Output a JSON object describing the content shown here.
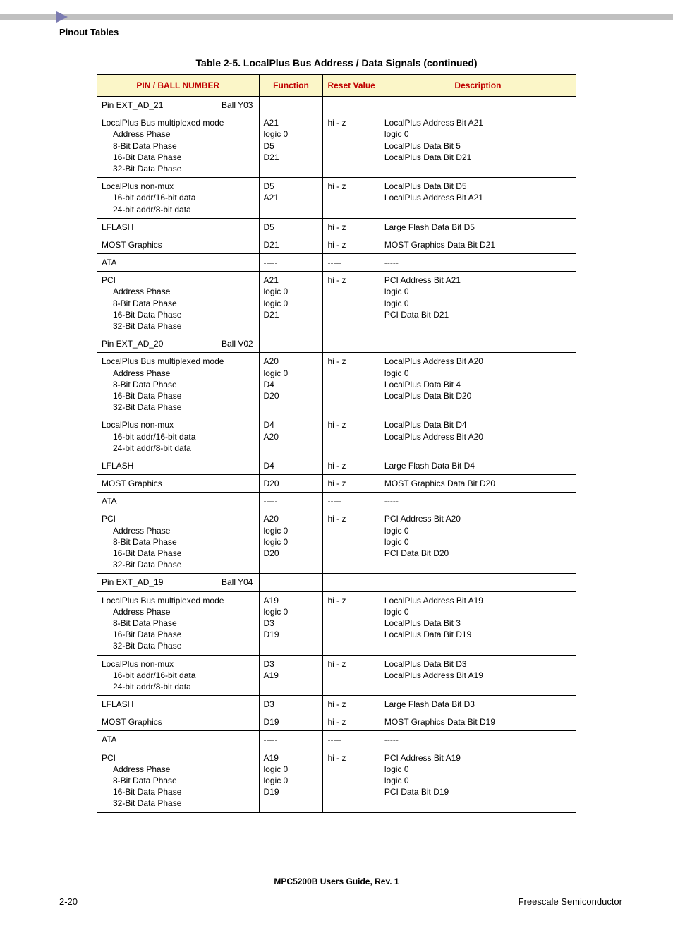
{
  "header": {
    "section_title": "Pinout Tables",
    "table_caption": "Table 2-5. LocalPlus Bus Address / Data Signals (continued)"
  },
  "columns": {
    "c0": "PIN / BALL NUMBER",
    "c1": "Function",
    "c2": "Reset Value",
    "c3": "Description"
  },
  "groups": [
    {
      "pin_label": "Pin  EXT_AD_21",
      "ball_label": "Ball Y03",
      "rows": [
        {
          "name_lines": [
            "LocalPlus Bus multiplexed mode",
            "  Address Phase",
            "  8-Bit Data Phase",
            "  16-Bit Data Phase",
            "  32-Bit Data Phase"
          ],
          "func_lines": [
            "",
            "A21",
            "logic 0",
            "D5",
            "D21"
          ],
          "reset": "hi - z",
          "desc_lines": [
            "",
            "LocalPlus Address Bit A21",
            "logic 0",
            "LocalPlus Data Bit 5",
            "LocalPlus Data Bit D21"
          ]
        },
        {
          "name_lines": [
            "LocalPlus non-mux",
            "  16-bit addr/16-bit data",
            "  24-bit addr/8-bit data"
          ],
          "func_lines": [
            "",
            "D5",
            "A21"
          ],
          "reset": "hi - z",
          "desc_lines": [
            "",
            "LocalPlus Data Bit D5",
            "LocalPlus Address Bit A21"
          ]
        },
        {
          "name_lines": [
            "LFLASH"
          ],
          "func_lines": [
            "D5"
          ],
          "reset": "hi - z",
          "desc_lines": [
            "Large Flash Data Bit D5"
          ]
        },
        {
          "name_lines": [
            "MOST Graphics"
          ],
          "func_lines": [
            "D21"
          ],
          "reset": "hi - z",
          "desc_lines": [
            "MOST Graphics Data Bit D21"
          ]
        },
        {
          "name_lines": [
            "ATA"
          ],
          "func_lines": [
            "-----"
          ],
          "reset": "-----",
          "desc_lines": [
            "-----"
          ]
        },
        {
          "name_lines": [
            "PCI",
            "  Address Phase",
            "  8-Bit Data Phase",
            "  16-Bit Data Phase",
            "  32-Bit Data Phase"
          ],
          "func_lines": [
            "",
            "A21",
            "logic 0",
            "logic 0",
            "D21"
          ],
          "reset": "hi - z",
          "desc_lines": [
            "",
            "PCI Address Bit A21",
            "logic 0",
            "logic 0",
            "PCI Data Bit D21"
          ]
        }
      ]
    },
    {
      "pin_label": "Pin  EXT_AD_20",
      "ball_label": "Ball V02",
      "rows": [
        {
          "name_lines": [
            "LocalPlus Bus multiplexed mode",
            "  Address Phase",
            "  8-Bit Data Phase",
            "  16-Bit Data Phase",
            "  32-Bit Data Phase"
          ],
          "func_lines": [
            "",
            "A20",
            "logic 0",
            "D4",
            "D20"
          ],
          "reset": "hi - z",
          "desc_lines": [
            "",
            "LocalPlus Address Bit A20",
            "logic 0",
            "LocalPlus Data Bit 4",
            "LocalPlus Data Bit D20"
          ]
        },
        {
          "name_lines": [
            "LocalPlus non-mux",
            "  16-bit addr/16-bit data",
            "  24-bit addr/8-bit data"
          ],
          "func_lines": [
            "",
            "D4",
            "A20"
          ],
          "reset": "hi - z",
          "desc_lines": [
            "",
            "LocalPlus Data Bit D4",
            "LocalPlus Address Bit A20"
          ]
        },
        {
          "name_lines": [
            "LFLASH"
          ],
          "func_lines": [
            "D4"
          ],
          "reset": "hi - z",
          "desc_lines": [
            "Large Flash Data Bit D4"
          ]
        },
        {
          "name_lines": [
            "MOST Graphics"
          ],
          "func_lines": [
            "D20"
          ],
          "reset": "hi - z",
          "desc_lines": [
            "MOST Graphics Data Bit D20"
          ]
        },
        {
          "name_lines": [
            "ATA"
          ],
          "func_lines": [
            "-----"
          ],
          "reset": "-----",
          "desc_lines": [
            "-----"
          ]
        },
        {
          "name_lines": [
            "PCI",
            "  Address Phase",
            "  8-Bit Data Phase",
            "  16-Bit Data Phase",
            "  32-Bit Data Phase"
          ],
          "func_lines": [
            "",
            "A20",
            "logic 0",
            "logic 0",
            "D20"
          ],
          "reset": "hi - z",
          "desc_lines": [
            "",
            "PCI Address Bit A20",
            "logic 0",
            "logic 0",
            "PCI Data Bit D20"
          ]
        }
      ]
    },
    {
      "pin_label": "Pin  EXT_AD_19",
      "ball_label": "Ball Y04",
      "rows": [
        {
          "name_lines": [
            "LocalPlus Bus multiplexed mode",
            "  Address Phase",
            "  8-Bit Data Phase",
            "  16-Bit Data Phase",
            "  32-Bit Data Phase"
          ],
          "func_lines": [
            "",
            "A19",
            "logic 0",
            "D3",
            "D19"
          ],
          "reset": "hi - z",
          "desc_lines": [
            "",
            "LocalPlus Address Bit A19",
            "logic 0",
            "LocalPlus Data Bit 3",
            "LocalPlus Data Bit D19"
          ]
        },
        {
          "name_lines": [
            "LocalPlus non-mux",
            "  16-bit addr/16-bit data",
            "  24-bit addr/8-bit data"
          ],
          "func_lines": [
            "",
            "D3",
            "A19"
          ],
          "reset": "hi - z",
          "desc_lines": [
            "",
            "LocalPlus Data Bit D3",
            "LocalPlus Address Bit A19"
          ]
        },
        {
          "name_lines": [
            "LFLASH"
          ],
          "func_lines": [
            "D3"
          ],
          "reset": "hi - z",
          "desc_lines": [
            "Large Flash Data Bit D3"
          ]
        },
        {
          "name_lines": [
            "MOST Graphics"
          ],
          "func_lines": [
            "D19"
          ],
          "reset": "hi - z",
          "desc_lines": [
            "MOST Graphics Data Bit D19"
          ]
        },
        {
          "name_lines": [
            "ATA"
          ],
          "func_lines": [
            "-----"
          ],
          "reset": "-----",
          "desc_lines": [
            "-----"
          ]
        },
        {
          "name_lines": [
            "PCI",
            "  Address Phase",
            "  8-Bit Data Phase",
            "  16-Bit Data Phase",
            "  32-Bit Data Phase"
          ],
          "func_lines": [
            "",
            "A19",
            "logic 0",
            "logic 0",
            "D19"
          ],
          "reset": "hi - z",
          "desc_lines": [
            "",
            "PCI Address Bit A19",
            "logic 0",
            "logic 0",
            "PCI Data Bit D19"
          ]
        }
      ]
    }
  ],
  "footer": {
    "doc_title": "MPC5200B Users Guide, Rev. 1",
    "page_number": "2-20",
    "vendor": "Freescale Semiconductor"
  },
  "style": {
    "header_bg": "#fbf6c8",
    "header_fg": "#c00000",
    "border_color": "#000000",
    "page_bg": "#ffffff",
    "topbar_color": "#c0c0c0",
    "arrow_color": "#7a7ab0",
    "font_family": "Arial, Helvetica, sans-serif",
    "base_font_size_pt": 9
  }
}
